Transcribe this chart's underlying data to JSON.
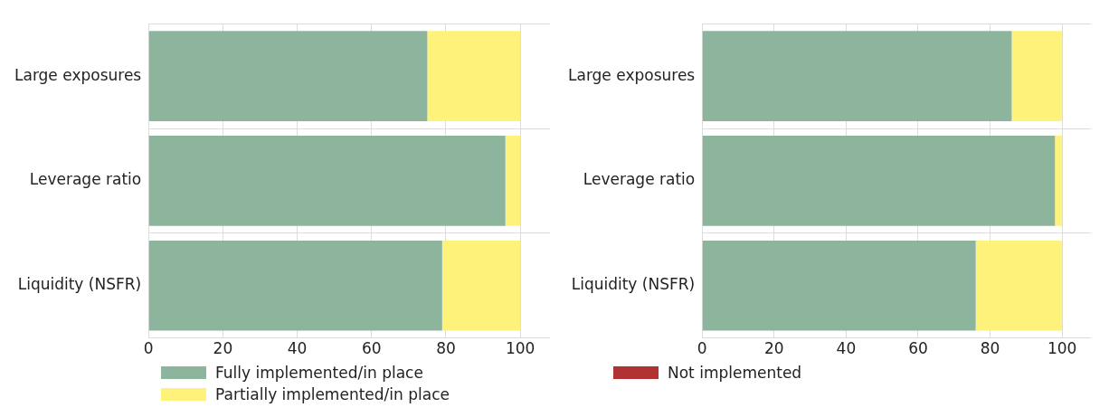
{
  "chart_data": [
    {
      "type": "bar",
      "orientation": "horizontal",
      "stacked": true,
      "categories": [
        "Large exposures",
        "Leverage ratio",
        "Liquidity (NSFR)"
      ],
      "series": [
        {
          "name": "Fully implemented/in place",
          "color": "#8db59e",
          "values": [
            75,
            96,
            79
          ]
        },
        {
          "name": "Partially implemented/in place",
          "color": "#fff27a",
          "values": [
            25,
            4,
            21
          ]
        },
        {
          "name": "Not implemented",
          "color": "#b03232",
          "values": [
            0,
            0,
            0
          ]
        }
      ],
      "xlim": [
        0,
        108
      ],
      "xticks": [
        0,
        20,
        40,
        60,
        80,
        100
      ],
      "grid": true,
      "legend": "bottom"
    },
    {
      "type": "bar",
      "orientation": "horizontal",
      "stacked": true,
      "categories": [
        "Large exposures",
        "Leverage ratio",
        "Liquidity (NSFR)"
      ],
      "series": [
        {
          "color": "#8db59e",
          "values": [
            86,
            98,
            76
          ]
        },
        {
          "color": "#fff27a",
          "values": [
            14,
            2,
            24
          ]
        },
        {
          "color": "#b03232",
          "values": [
            0,
            0,
            0
          ]
        }
      ],
      "xlim": [
        0,
        108
      ],
      "xticks": [
        0,
        20,
        40,
        60,
        80,
        100
      ],
      "grid": true
    }
  ]
}
